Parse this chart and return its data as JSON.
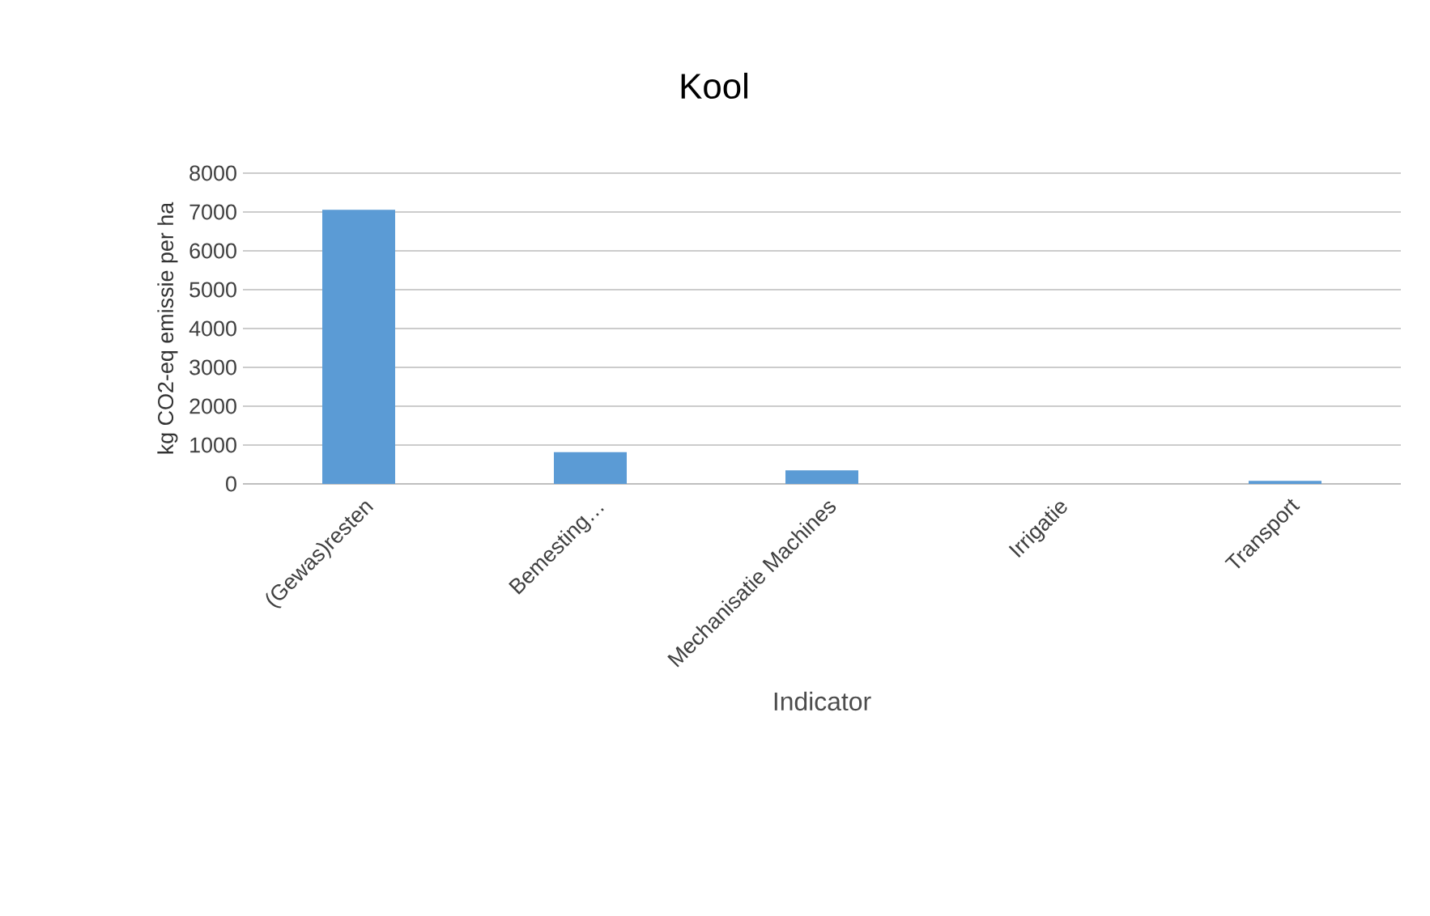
{
  "chart_data": {
    "type": "bar",
    "title": "Kool",
    "xlabel": "Indicator",
    "ylabel": "kg CO2-eq emissie per ha",
    "categories": [
      "(Gewas)resten",
      "Bemesting…",
      "Mechanisatie Machines",
      "Irrigatie",
      "Transport"
    ],
    "values": [
      7060,
      820,
      350,
      0,
      80
    ],
    "color": "#5b9bd5",
    "ylim": [
      0,
      8000
    ],
    "yticks": [
      0,
      1000,
      2000,
      3000,
      4000,
      5000,
      6000,
      7000,
      8000
    ],
    "grid": "y"
  }
}
